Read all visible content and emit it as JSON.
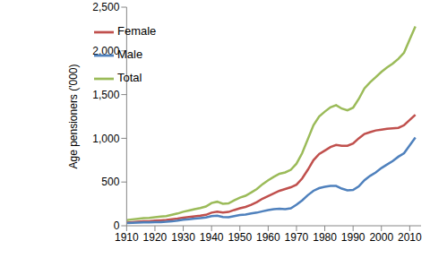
{
  "chart_data": {
    "type": "line",
    "y_label": "Age pensioners ('000)",
    "x": [
      1910,
      1912,
      1914,
      1916,
      1918,
      1920,
      1922,
      1924,
      1926,
      1928,
      1930,
      1932,
      1934,
      1936,
      1938,
      1940,
      1942,
      1944,
      1946,
      1948,
      1950,
      1952,
      1954,
      1956,
      1958,
      1960,
      1962,
      1964,
      1966,
      1968,
      1970,
      1972,
      1974,
      1976,
      1978,
      1980,
      1982,
      1984,
      1986,
      1988,
      1990,
      1992,
      1994,
      1996,
      1998,
      2000,
      2002,
      2004,
      2006,
      2008,
      2010,
      2012
    ],
    "series": [
      {
        "name": "Total",
        "color": "#9bbb59",
        "values": [
          65,
          73,
          80,
          88,
          90,
          98,
          104,
          111,
          125,
          140,
          160,
          175,
          190,
          203,
          220,
          260,
          275,
          252,
          256,
          290,
          322,
          343,
          380,
          420,
          475,
          520,
          560,
          595,
          610,
          640,
          710,
          830,
          990,
          1150,
          1250,
          1305,
          1355,
          1380,
          1340,
          1320,
          1350,
          1450,
          1570,
          1640,
          1700,
          1760,
          1810,
          1855,
          1910,
          1980,
          2130,
          2280
        ]
      },
      {
        "name": "Female",
        "color": "#c0504d",
        "values": [
          35,
          40,
          45,
          50,
          52,
          58,
          62,
          66,
          75,
          82,
          92,
          100,
          108,
          115,
          125,
          150,
          160,
          152,
          158,
          180,
          200,
          215,
          240,
          270,
          310,
          340,
          370,
          400,
          420,
          440,
          470,
          540,
          640,
          750,
          820,
          860,
          900,
          925,
          915,
          915,
          940,
          1000,
          1050,
          1070,
          1090,
          1100,
          1110,
          1115,
          1120,
          1150,
          1210,
          1270
        ]
      },
      {
        "name": "Male",
        "color": "#4f81bd",
        "values": [
          30,
          33,
          35,
          38,
          38,
          40,
          42,
          45,
          50,
          58,
          68,
          75,
          82,
          88,
          95,
          110,
          115,
          100,
          98,
          110,
          122,
          128,
          140,
          150,
          165,
          180,
          190,
          195,
          190,
          200,
          240,
          290,
          350,
          400,
          430,
          445,
          455,
          455,
          425,
          405,
          410,
          450,
          520,
          570,
          610,
          660,
          700,
          740,
          790,
          830,
          920,
          1010
        ]
      }
    ],
    "xlim": [
      1910,
      2014
    ],
    "xticks": [
      1910,
      1920,
      1930,
      1940,
      1950,
      1960,
      1970,
      1980,
      1990,
      2000,
      2010
    ],
    "ylim": [
      0,
      2500
    ],
    "yticks": [
      0,
      {
        "value": 500,
        "label": "500"
      },
      {
        "value": 1000,
        "label": "1,000"
      },
      {
        "value": 1500,
        "label": "1,500"
      },
      {
        "value": 2000,
        "label": "2,000"
      },
      {
        "value": 2500,
        "label": "2,500"
      }
    ],
    "grid": false,
    "legend": "upper left"
  }
}
